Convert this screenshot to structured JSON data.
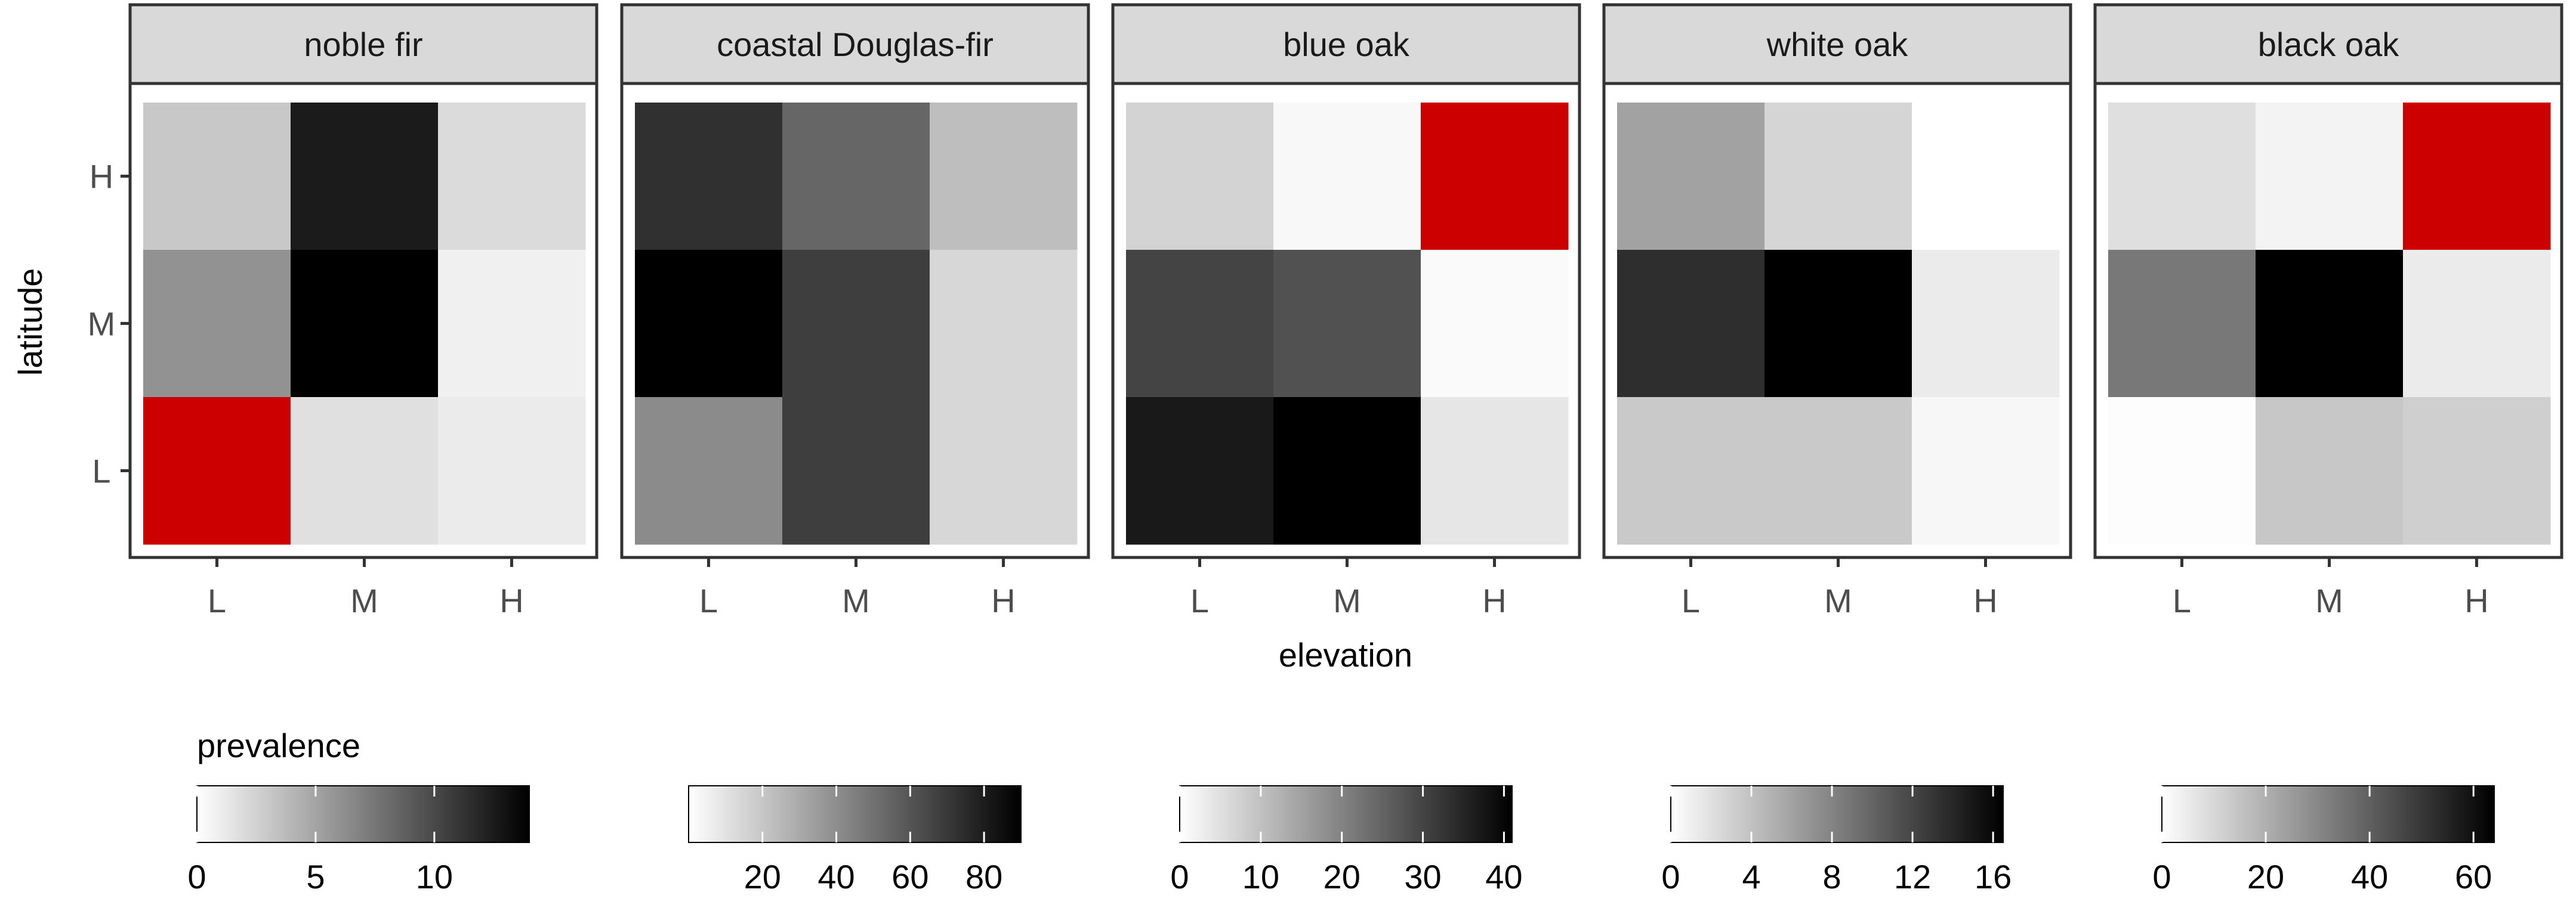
{
  "chart_data": {
    "type": "heatmap",
    "xlabel": "elevation",
    "ylabel": "latitude",
    "x_categories": [
      "L",
      "M",
      "H"
    ],
    "y_categories": [
      "L",
      "M",
      "H"
    ],
    "legend_title": "prevalence",
    "legend_placement": "bottom",
    "colors": {
      "low": "#ffffff",
      "high": "#000000",
      "highlight": "#cc0000",
      "strip_fill": "#d9d9d9",
      "panel_border": "#333333",
      "axis_text": "#4d4d4d"
    },
    "highlight_note_color": "#cc0000",
    "panels": [
      {
        "title": "noble fir",
        "scale": {
          "min": 0,
          "max": 14,
          "ticks": [
            0,
            5,
            10
          ]
        },
        "cells": [
          {
            "x": "L",
            "y": "H",
            "value": 3
          },
          {
            "x": "M",
            "y": "H",
            "value": 12.5
          },
          {
            "x": "H",
            "y": "H",
            "value": 2
          },
          {
            "x": "L",
            "y": "M",
            "value": 6
          },
          {
            "x": "M",
            "y": "M",
            "value": 14
          },
          {
            "x": "H",
            "y": "M",
            "value": 0.8
          },
          {
            "x": "L",
            "y": "L",
            "value": null,
            "highlight": true
          },
          {
            "x": "M",
            "y": "L",
            "value": 1.7
          },
          {
            "x": "H",
            "y": "L",
            "value": 1.1
          }
        ]
      },
      {
        "title": "coastal Douglas-fir",
        "scale": {
          "min": 0,
          "max": 90,
          "ticks": [
            20,
            40,
            60,
            80
          ]
        },
        "cells": [
          {
            "x": "L",
            "y": "H",
            "value": 73
          },
          {
            "x": "M",
            "y": "H",
            "value": 54
          },
          {
            "x": "H",
            "y": "H",
            "value": 23
          },
          {
            "x": "L",
            "y": "M",
            "value": 90
          },
          {
            "x": "M",
            "y": "M",
            "value": 68
          },
          {
            "x": "H",
            "y": "M",
            "value": 14
          },
          {
            "x": "L",
            "y": "L",
            "value": 41
          },
          {
            "x": "M",
            "y": "L",
            "value": 68
          },
          {
            "x": "H",
            "y": "L",
            "value": 14
          }
        ]
      },
      {
        "title": "blue oak",
        "scale": {
          "min": 0,
          "max": 41,
          "ticks": [
            0,
            10,
            20,
            30,
            40
          ]
        },
        "cells": [
          {
            "x": "L",
            "y": "H",
            "value": 7
          },
          {
            "x": "M",
            "y": "H",
            "value": 1.2
          },
          {
            "x": "H",
            "y": "H",
            "value": null,
            "highlight": true
          },
          {
            "x": "L",
            "y": "M",
            "value": 30
          },
          {
            "x": "M",
            "y": "M",
            "value": 28
          },
          {
            "x": "H",
            "y": "M",
            "value": 0.8
          },
          {
            "x": "L",
            "y": "L",
            "value": 37
          },
          {
            "x": "M",
            "y": "L",
            "value": 41
          },
          {
            "x": "H",
            "y": "L",
            "value": 4
          }
        ]
      },
      {
        "title": "white oak",
        "scale": {
          "min": 0,
          "max": 16.5,
          "ticks": [
            0,
            4,
            8,
            12,
            16
          ]
        },
        "cells": [
          {
            "x": "L",
            "y": "H",
            "value": 6
          },
          {
            "x": "M",
            "y": "H",
            "value": 2.7
          },
          {
            "x": "H",
            "y": "H",
            "value": 0
          },
          {
            "x": "L",
            "y": "M",
            "value": 13.5
          },
          {
            "x": "M",
            "y": "M",
            "value": 16.5
          },
          {
            "x": "H",
            "y": "M",
            "value": 1.3
          },
          {
            "x": "L",
            "y": "L",
            "value": 3.5
          },
          {
            "x": "M",
            "y": "L",
            "value": 3.5
          },
          {
            "x": "H",
            "y": "L",
            "value": 0.5
          }
        ]
      },
      {
        "title": "black oak",
        "scale": {
          "min": 0,
          "max": 64,
          "ticks": [
            0,
            20,
            40,
            60
          ]
        },
        "cells": [
          {
            "x": "L",
            "y": "H",
            "value": 8
          },
          {
            "x": "M",
            "y": "H",
            "value": 3
          },
          {
            "x": "H",
            "y": "H",
            "value": null,
            "highlight": true
          },
          {
            "x": "L",
            "y": "M",
            "value": 34
          },
          {
            "x": "M",
            "y": "M",
            "value": 64
          },
          {
            "x": "H",
            "y": "M",
            "value": 5
          },
          {
            "x": "L",
            "y": "L",
            "value": 0.5
          },
          {
            "x": "M",
            "y": "L",
            "value": 14
          },
          {
            "x": "H",
            "y": "L",
            "value": 12
          }
        ]
      }
    ]
  }
}
